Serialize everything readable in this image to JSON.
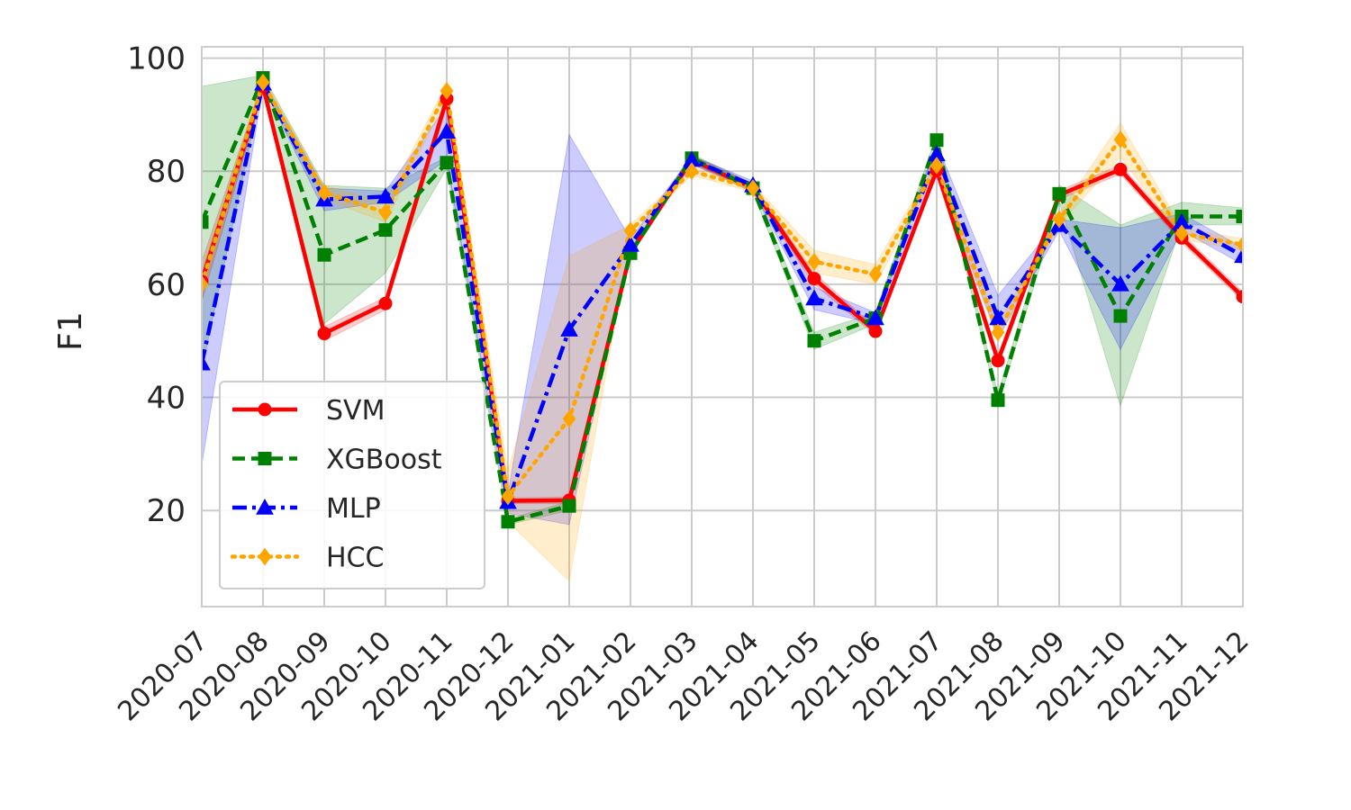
{
  "chart_data": {
    "type": "line",
    "title": "",
    "xlabel": "",
    "ylabel": "F1",
    "ylim": [
      3,
      102
    ],
    "yticks": [
      20,
      40,
      60,
      80,
      100
    ],
    "grid": true,
    "legend_position": "lower-left",
    "categories": [
      "2020-07",
      "2020-08",
      "2020-09",
      "2020-10",
      "2020-11",
      "2020-12",
      "2021-01",
      "2021-02",
      "2021-03",
      "2021-04",
      "2021-05",
      "2021-06",
      "2021-07",
      "2021-08",
      "2021-09",
      "2021-10",
      "2021-11",
      "2021-12"
    ],
    "series": [
      {
        "name": "SVM",
        "color": "#ff0000",
        "linestyle": "solid",
        "marker": "circle",
        "values": [
          60.5,
          95.0,
          51.3,
          56.6,
          92.8,
          21.7,
          21.8,
          65.6,
          82.0,
          77.0,
          61.0,
          51.7,
          80.2,
          46.5,
          75.8,
          80.3,
          68.2,
          57.8
        ],
        "lower": [
          57.0,
          94.0,
          50.0,
          55.5,
          91.5,
          21.2,
          21.2,
          65.0,
          81.2,
          76.3,
          60.0,
          51.0,
          79.4,
          45.5,
          75.0,
          79.5,
          67.4,
          57.0
        ],
        "upper": [
          64.0,
          96.0,
          52.5,
          57.7,
          94.0,
          22.2,
          22.4,
          66.2,
          82.8,
          77.7,
          62.0,
          52.4,
          81.0,
          47.5,
          76.6,
          81.1,
          69.0,
          58.6
        ]
      },
      {
        "name": "XGBoost",
        "color": "#008000",
        "linestyle": "dashed",
        "marker": "square",
        "values": [
          71.0,
          96.5,
          65.2,
          69.6,
          81.5,
          18.0,
          20.8,
          65.5,
          82.3,
          77.0,
          50.0,
          54.0,
          85.5,
          39.5,
          76.0,
          54.4,
          72.0,
          72.0
        ],
        "lower": [
          45.0,
          95.5,
          53.0,
          62.0,
          80.5,
          17.5,
          20.0,
          65.0,
          81.5,
          76.3,
          48.5,
          53.0,
          84.5,
          38.5,
          74.5,
          38.5,
          70.5,
          70.5
        ],
        "upper": [
          95.0,
          97.0,
          77.5,
          77.0,
          82.5,
          18.5,
          21.6,
          66.0,
          83.1,
          77.7,
          51.5,
          55.0,
          86.5,
          40.5,
          77.5,
          70.5,
          74.5,
          73.5
        ]
      },
      {
        "name": "MLP",
        "color": "#0000ff",
        "linestyle": "dashdot",
        "marker": "triangle",
        "values": [
          46.0,
          95.5,
          75.0,
          75.5,
          87.0,
          21.5,
          52.0,
          67.0,
          82.0,
          77.5,
          57.5,
          54.0,
          83.0,
          54.0,
          70.5,
          60.0,
          71.0,
          65.0
        ],
        "lower": [
          28.0,
          95.0,
          73.0,
          74.5,
          82.0,
          19.5,
          17.5,
          66.0,
          81.3,
          76.7,
          55.5,
          53.0,
          79.0,
          50.5,
          69.5,
          48.5,
          69.5,
          63.5
        ],
        "upper": [
          62.0,
          96.0,
          77.0,
          76.5,
          91.5,
          23.0,
          86.5,
          68.0,
          82.7,
          78.3,
          59.5,
          55.0,
          85.0,
          58.0,
          71.5,
          70.0,
          72.5,
          66.5
        ]
      },
      {
        "name": "HCC",
        "color": "#ffa500",
        "linestyle": "dotted",
        "marker": "diamond",
        "values": [
          60.0,
          95.7,
          76.2,
          72.7,
          94.2,
          22.5,
          36.2,
          69.5,
          80.0,
          77.0,
          64.0,
          61.8,
          81.0,
          51.5,
          71.5,
          85.6,
          69.0,
          67.0
        ],
        "lower": [
          57.5,
          95.0,
          75.0,
          71.0,
          93.0,
          18.0,
          7.5,
          68.5,
          79.3,
          76.3,
          62.0,
          60.0,
          80.0,
          50.0,
          70.5,
          82.5,
          68.0,
          66.0
        ],
        "upper": [
          62.5,
          96.5,
          77.5,
          74.5,
          95.5,
          27.0,
          65.0,
          70.5,
          80.7,
          77.7,
          66.0,
          63.5,
          82.0,
          53.0,
          72.5,
          88.5,
          70.0,
          68.0
        ]
      }
    ]
  }
}
